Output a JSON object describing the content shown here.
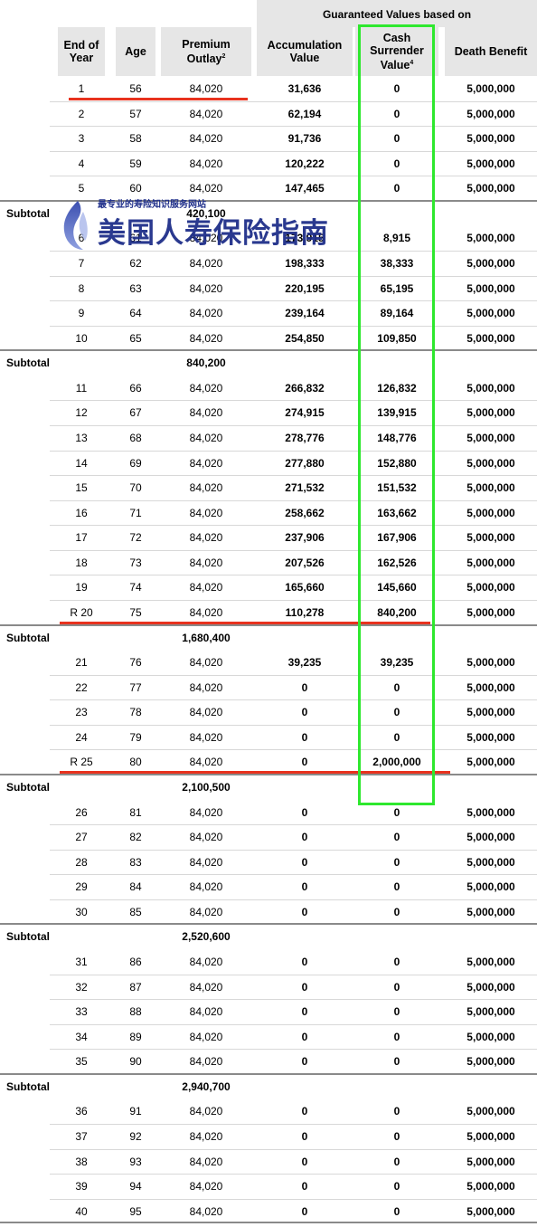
{
  "header": {
    "group_label": "Guaranteed Values based on",
    "columns": [
      {
        "label_lines": [
          "End of",
          "Year"
        ],
        "sup": ""
      },
      {
        "label_lines": [
          "Age"
        ],
        "sup": ""
      },
      {
        "label_lines": [
          "Premium",
          "Outlay"
        ],
        "sup": "2"
      },
      {
        "label_lines": [
          "Accumulation",
          "Value"
        ],
        "sup": ""
      },
      {
        "label_lines": [
          "Cash",
          "Surrender",
          "Value"
        ],
        "sup": "4"
      },
      {
        "label_lines": [
          "Death Benefit"
        ],
        "sup": ""
      }
    ]
  },
  "subtotal_label": "Subtotal",
  "watermark": {
    "small": "最专业的寿险知识服务网站",
    "big": "美国人寿保险指南"
  },
  "rows": [
    {
      "year": "1",
      "age": "56",
      "premium": "84,020",
      "accum": "31,636",
      "csv": "0",
      "death": "5,000,000"
    },
    {
      "year": "2",
      "age": "57",
      "premium": "84,020",
      "accum": "62,194",
      "csv": "0",
      "death": "5,000,000"
    },
    {
      "year": "3",
      "age": "58",
      "premium": "84,020",
      "accum": "91,736",
      "csv": "0",
      "death": "5,000,000"
    },
    {
      "year": "4",
      "age": "59",
      "premium": "84,020",
      "accum": "120,222",
      "csv": "0",
      "death": "5,000,000"
    },
    {
      "year": "5",
      "age": "60",
      "premium": "84,020",
      "accum": "147,465",
      "csv": "0",
      "death": "5,000,000"
    },
    {
      "subtotal": "420,100"
    },
    {
      "year": "6",
      "age": "61",
      "premium": "84,020",
      "accum": "173,915",
      "csv": "8,915",
      "death": "5,000,000"
    },
    {
      "year": "7",
      "age": "62",
      "premium": "84,020",
      "accum": "198,333",
      "csv": "38,333",
      "death": "5,000,000"
    },
    {
      "year": "8",
      "age": "63",
      "premium": "84,020",
      "accum": "220,195",
      "csv": "65,195",
      "death": "5,000,000"
    },
    {
      "year": "9",
      "age": "64",
      "premium": "84,020",
      "accum": "239,164",
      "csv": "89,164",
      "death": "5,000,000"
    },
    {
      "year": "10",
      "age": "65",
      "premium": "84,020",
      "accum": "254,850",
      "csv": "109,850",
      "death": "5,000,000"
    },
    {
      "subtotal": "840,200"
    },
    {
      "year": "11",
      "age": "66",
      "premium": "84,020",
      "accum": "266,832",
      "csv": "126,832",
      "death": "5,000,000"
    },
    {
      "year": "12",
      "age": "67",
      "premium": "84,020",
      "accum": "274,915",
      "csv": "139,915",
      "death": "5,000,000"
    },
    {
      "year": "13",
      "age": "68",
      "premium": "84,020",
      "accum": "278,776",
      "csv": "148,776",
      "death": "5,000,000"
    },
    {
      "year": "14",
      "age": "69",
      "premium": "84,020",
      "accum": "277,880",
      "csv": "152,880",
      "death": "5,000,000"
    },
    {
      "year": "15",
      "age": "70",
      "premium": "84,020",
      "accum": "271,532",
      "csv": "151,532",
      "death": "5,000,000"
    },
    {
      "year": "16",
      "age": "71",
      "premium": "84,020",
      "accum": "258,662",
      "csv": "163,662",
      "death": "5,000,000"
    },
    {
      "year": "17",
      "age": "72",
      "premium": "84,020",
      "accum": "237,906",
      "csv": "167,906",
      "death": "5,000,000"
    },
    {
      "year": "18",
      "age": "73",
      "premium": "84,020",
      "accum": "207,526",
      "csv": "162,526",
      "death": "5,000,000"
    },
    {
      "year": "19",
      "age": "74",
      "premium": "84,020",
      "accum": "165,660",
      "csv": "145,660",
      "death": "5,000,000"
    },
    {
      "year": "R 20",
      "age": "75",
      "premium": "84,020",
      "accum": "110,278",
      "csv": "840,200",
      "death": "5,000,000"
    },
    {
      "subtotal": "1,680,400"
    },
    {
      "year": "21",
      "age": "76",
      "premium": "84,020",
      "accum": "39,235",
      "csv": "39,235",
      "death": "5,000,000"
    },
    {
      "year": "22",
      "age": "77",
      "premium": "84,020",
      "accum": "0",
      "csv": "0",
      "death": "5,000,000"
    },
    {
      "year": "23",
      "age": "78",
      "premium": "84,020",
      "accum": "0",
      "csv": "0",
      "death": "5,000,000"
    },
    {
      "year": "24",
      "age": "79",
      "premium": "84,020",
      "accum": "0",
      "csv": "0",
      "death": "5,000,000"
    },
    {
      "year": "R 25",
      "age": "80",
      "premium": "84,020",
      "accum": "0",
      "csv": "2,000,000",
      "death": "5,000,000"
    },
    {
      "subtotal": "2,100,500"
    },
    {
      "year": "26",
      "age": "81",
      "premium": "84,020",
      "accum": "0",
      "csv": "0",
      "death": "5,000,000"
    },
    {
      "year": "27",
      "age": "82",
      "premium": "84,020",
      "accum": "0",
      "csv": "0",
      "death": "5,000,000"
    },
    {
      "year": "28",
      "age": "83",
      "premium": "84,020",
      "accum": "0",
      "csv": "0",
      "death": "5,000,000"
    },
    {
      "year": "29",
      "age": "84",
      "premium": "84,020",
      "accum": "0",
      "csv": "0",
      "death": "5,000,000"
    },
    {
      "year": "30",
      "age": "85",
      "premium": "84,020",
      "accum": "0",
      "csv": "0",
      "death": "5,000,000"
    },
    {
      "subtotal": "2,520,600"
    },
    {
      "year": "31",
      "age": "86",
      "premium": "84,020",
      "accum": "0",
      "csv": "0",
      "death": "5,000,000"
    },
    {
      "year": "32",
      "age": "87",
      "premium": "84,020",
      "accum": "0",
      "csv": "0",
      "death": "5,000,000"
    },
    {
      "year": "33",
      "age": "88",
      "premium": "84,020",
      "accum": "0",
      "csv": "0",
      "death": "5,000,000"
    },
    {
      "year": "34",
      "age": "89",
      "premium": "84,020",
      "accum": "0",
      "csv": "0",
      "death": "5,000,000"
    },
    {
      "year": "35",
      "age": "90",
      "premium": "84,020",
      "accum": "0",
      "csv": "0",
      "death": "5,000,000"
    },
    {
      "subtotal": "2,940,700"
    },
    {
      "year": "36",
      "age": "91",
      "premium": "84,020",
      "accum": "0",
      "csv": "0",
      "death": "5,000,000"
    },
    {
      "year": "37",
      "age": "92",
      "premium": "84,020",
      "accum": "0",
      "csv": "0",
      "death": "5,000,000"
    },
    {
      "year": "38",
      "age": "93",
      "premium": "84,020",
      "accum": "0",
      "csv": "0",
      "death": "5,000,000"
    },
    {
      "year": "39",
      "age": "94",
      "premium": "84,020",
      "accum": "0",
      "csv": "0",
      "death": "5,000,000"
    },
    {
      "year": "40",
      "age": "95",
      "premium": "84,020",
      "accum": "0",
      "csv": "0",
      "death": "5,000,000"
    }
  ],
  "colors": {
    "highlight_line": "#e8321e",
    "highlight_box": "#2ee82e",
    "header_bg": "#e6e6e6",
    "watermark": "#1f2f8a"
  }
}
